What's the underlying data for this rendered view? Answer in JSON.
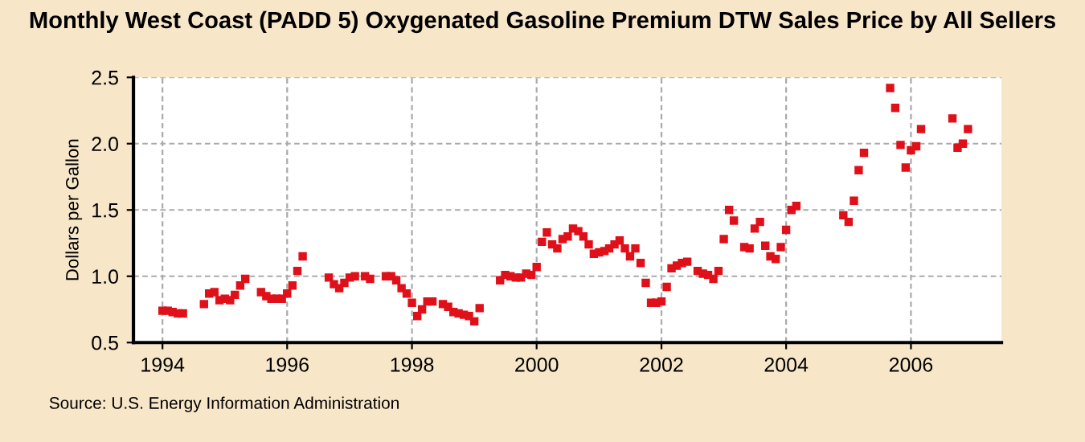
{
  "chart_data": {
    "type": "scatter",
    "title": "Monthly West Coast (PADD 5) Oxygenated Gasoline Premium DTW Sales Price by All Sellers",
    "ylabel": "Dollars per Gallon",
    "annotations": [
      "Source: U.S. Energy Information Administration"
    ],
    "x": [
      "1994-01",
      "1994-02",
      "1994-03",
      "1994-04",
      "1994-05",
      "1994-09",
      "1994-10",
      "1994-11",
      "1994-12",
      "1995-01",
      "1995-02",
      "1995-03",
      "1995-04",
      "1995-05",
      "1995-08",
      "1995-09",
      "1995-10",
      "1995-11",
      "1995-12",
      "1996-01",
      "1996-02",
      "1996-03",
      "1996-04",
      "1996-09",
      "1996-10",
      "1996-11",
      "1996-12",
      "1997-01",
      "1997-02",
      "1997-04",
      "1997-05",
      "1997-08",
      "1997-09",
      "1997-10",
      "1997-11",
      "1997-12",
      "1998-01",
      "1998-02",
      "1998-03",
      "1998-04",
      "1998-05",
      "1998-07",
      "1998-08",
      "1998-09",
      "1998-10",
      "1998-11",
      "1998-12",
      "1999-01",
      "1999-02",
      "1999-06",
      "1999-07",
      "1999-08",
      "1999-09",
      "1999-10",
      "1999-11",
      "1999-12",
      "2000-01",
      "2000-02",
      "2000-03",
      "2000-04",
      "2000-05",
      "2000-06",
      "2000-07",
      "2000-08",
      "2000-09",
      "2000-10",
      "2000-11",
      "2000-12",
      "2001-01",
      "2001-02",
      "2001-03",
      "2001-04",
      "2001-05",
      "2001-06",
      "2001-07",
      "2001-08",
      "2001-09",
      "2001-10",
      "2001-11",
      "2001-12",
      "2002-01",
      "2002-02",
      "2002-03",
      "2002-04",
      "2002-05",
      "2002-06",
      "2002-08",
      "2002-09",
      "2002-10",
      "2002-11",
      "2002-12",
      "2003-01",
      "2003-02",
      "2003-03",
      "2003-05",
      "2003-06",
      "2003-07",
      "2003-08",
      "2003-09",
      "2003-10",
      "2003-11",
      "2003-12",
      "2004-01",
      "2004-02",
      "2004-03",
      "2004-12",
      "2005-01",
      "2005-02",
      "2005-03",
      "2005-04",
      "2005-09",
      "2005-10",
      "2005-11",
      "2005-12",
      "2006-01",
      "2006-02",
      "2006-03",
      "2006-09",
      "2006-10",
      "2006-11",
      "2006-12"
    ],
    "series": [
      {
        "color": "#e0101a",
        "values": [
          0.74,
          0.74,
          0.73,
          0.72,
          0.72,
          0.79,
          0.87,
          0.88,
          0.82,
          0.83,
          0.82,
          0.86,
          0.93,
          0.98,
          0.88,
          0.85,
          0.83,
          0.83,
          0.83,
          0.87,
          0.93,
          1.04,
          1.15,
          0.99,
          0.94,
          0.91,
          0.95,
          0.99,
          1.0,
          1.0,
          0.98,
          1.0,
          1.0,
          0.97,
          0.91,
          0.87,
          0.8,
          0.7,
          0.75,
          0.81,
          0.81,
          0.79,
          0.77,
          0.73,
          0.72,
          0.71,
          0.7,
          0.66,
          0.76,
          0.97,
          1.01,
          1.0,
          0.99,
          0.99,
          1.02,
          1.01,
          1.07,
          1.26,
          1.33,
          1.24,
          1.21,
          1.28,
          1.3,
          1.36,
          1.34,
          1.3,
          1.24,
          1.17,
          1.18,
          1.19,
          1.21,
          1.24,
          1.27,
          1.21,
          1.15,
          1.21,
          1.1,
          0.95,
          0.8,
          0.8,
          0.81,
          0.92,
          1.06,
          1.08,
          1.1,
          1.11,
          1.04,
          1.02,
          1.01,
          0.98,
          1.04,
          1.28,
          1.5,
          1.42,
          1.22,
          1.21,
          1.36,
          1.41,
          1.23,
          1.15,
          1.13,
          1.22,
          1.35,
          1.5,
          1.53,
          1.46,
          1.41,
          1.57,
          1.8,
          1.93,
          2.42,
          2.27,
          1.99,
          1.82,
          1.95,
          1.98,
          2.11,
          2.19,
          1.97,
          2.0,
          2.11
        ]
      }
    ],
    "marker": "square",
    "xlim": [
      "1993-07-15",
      "2007-06-15"
    ],
    "xticks": [
      {
        "value": "1994-01",
        "label": "1994"
      },
      {
        "value": "1996-01",
        "label": "1996"
      },
      {
        "value": "1998-01",
        "label": "1998"
      },
      {
        "value": "2000-01",
        "label": "2000"
      },
      {
        "value": "2002-01",
        "label": "2002"
      },
      {
        "value": "2004-01",
        "label": "2004"
      },
      {
        "value": "2006-01",
        "label": "2006"
      }
    ],
    "ylim": [
      0.5,
      2.5
    ],
    "yticks": [
      {
        "value": 0.5,
        "label": "0.5"
      },
      {
        "value": 1.0,
        "label": "1.0"
      },
      {
        "value": 1.5,
        "label": "1.5"
      },
      {
        "value": 2.0,
        "label": "2.0"
      },
      {
        "value": 2.5,
        "label": "2.5"
      }
    ],
    "grid": true
  }
}
